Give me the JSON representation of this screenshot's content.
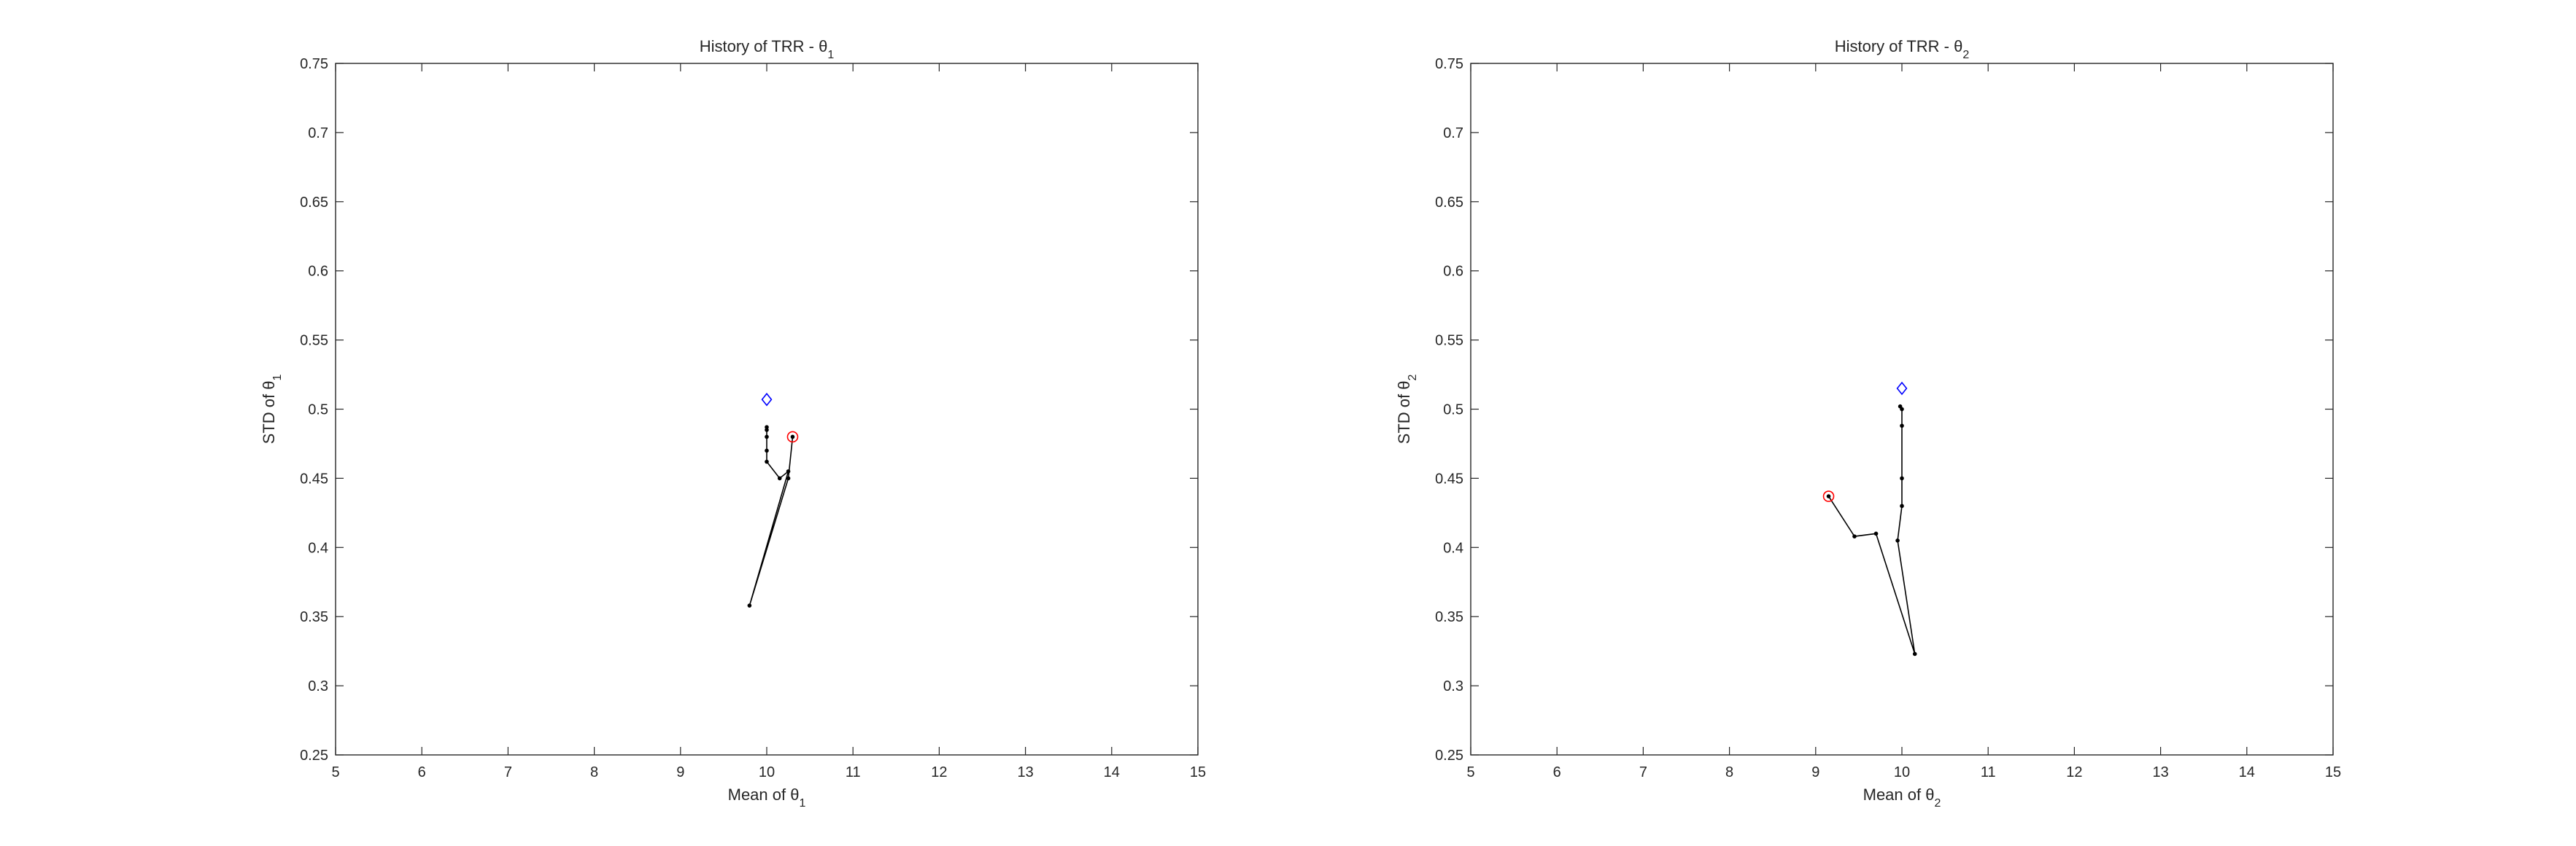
{
  "chart_data": [
    {
      "type": "line",
      "title": "History of TRR - θ",
      "title_subscript": "1",
      "xlabel": "Mean of θ",
      "xlabel_subscript": "1",
      "ylabel": "STD of θ",
      "ylabel_subscript": "1",
      "xlim": [
        5,
        15
      ],
      "ylim": [
        0.25,
        0.75
      ],
      "xticks": [
        "5",
        "6",
        "7",
        "8",
        "9",
        "10",
        "11",
        "12",
        "13",
        "14",
        "15"
      ],
      "yticks": [
        "0.25",
        "0.3",
        "0.35",
        "0.4",
        "0.45",
        "0.5",
        "0.55",
        "0.6",
        "0.65",
        "0.7",
        "0.75"
      ],
      "grid": false,
      "series": [
        {
          "marker": "point",
          "color": "#000000",
          "points": [
            [
              10.3,
              0.48
            ],
            [
              10.25,
              0.45
            ],
            [
              9.8,
              0.358
            ],
            [
              10.25,
              0.455
            ],
            [
              10.15,
              0.45
            ],
            [
              10.0,
              0.462
            ],
            [
              10.0,
              0.47
            ],
            [
              10.0,
              0.48
            ],
            [
              10.0,
              0.485
            ],
            [
              10.0,
              0.487
            ]
          ]
        }
      ],
      "markers": [
        {
          "kind": "diamond",
          "color": "#0000ff",
          "x": 10.0,
          "y": 0.507
        },
        {
          "kind": "circle",
          "color": "#ff0000",
          "x": 10.3,
          "y": 0.48
        }
      ]
    },
    {
      "type": "line",
      "title": "History of TRR - θ",
      "title_subscript": "2",
      "xlabel": "Mean of θ",
      "xlabel_subscript": "2",
      "ylabel": "STD of θ",
      "ylabel_subscript": "2",
      "xlim": [
        5,
        15
      ],
      "ylim": [
        0.25,
        0.75
      ],
      "xticks": [
        "5",
        "6",
        "7",
        "8",
        "9",
        "10",
        "11",
        "12",
        "13",
        "14",
        "15"
      ],
      "yticks": [
        "0.25",
        "0.3",
        "0.35",
        "0.4",
        "0.45",
        "0.5",
        "0.55",
        "0.6",
        "0.65",
        "0.7",
        "0.75"
      ],
      "grid": false,
      "series": [
        {
          "marker": "point",
          "color": "#000000",
          "points": [
            [
              9.15,
              0.437
            ],
            [
              9.45,
              0.408
            ],
            [
              9.7,
              0.41
            ],
            [
              10.15,
              0.323
            ],
            [
              9.95,
              0.405
            ],
            [
              10.0,
              0.43
            ],
            [
              10.0,
              0.45
            ],
            [
              10.0,
              0.488
            ],
            [
              10.0,
              0.5
            ],
            [
              9.98,
              0.502
            ]
          ]
        }
      ],
      "markers": [
        {
          "kind": "diamond",
          "color": "#0000ff",
          "x": 10.0,
          "y": 0.515
        },
        {
          "kind": "circle",
          "color": "#ff0000",
          "x": 9.15,
          "y": 0.437
        }
      ]
    }
  ]
}
